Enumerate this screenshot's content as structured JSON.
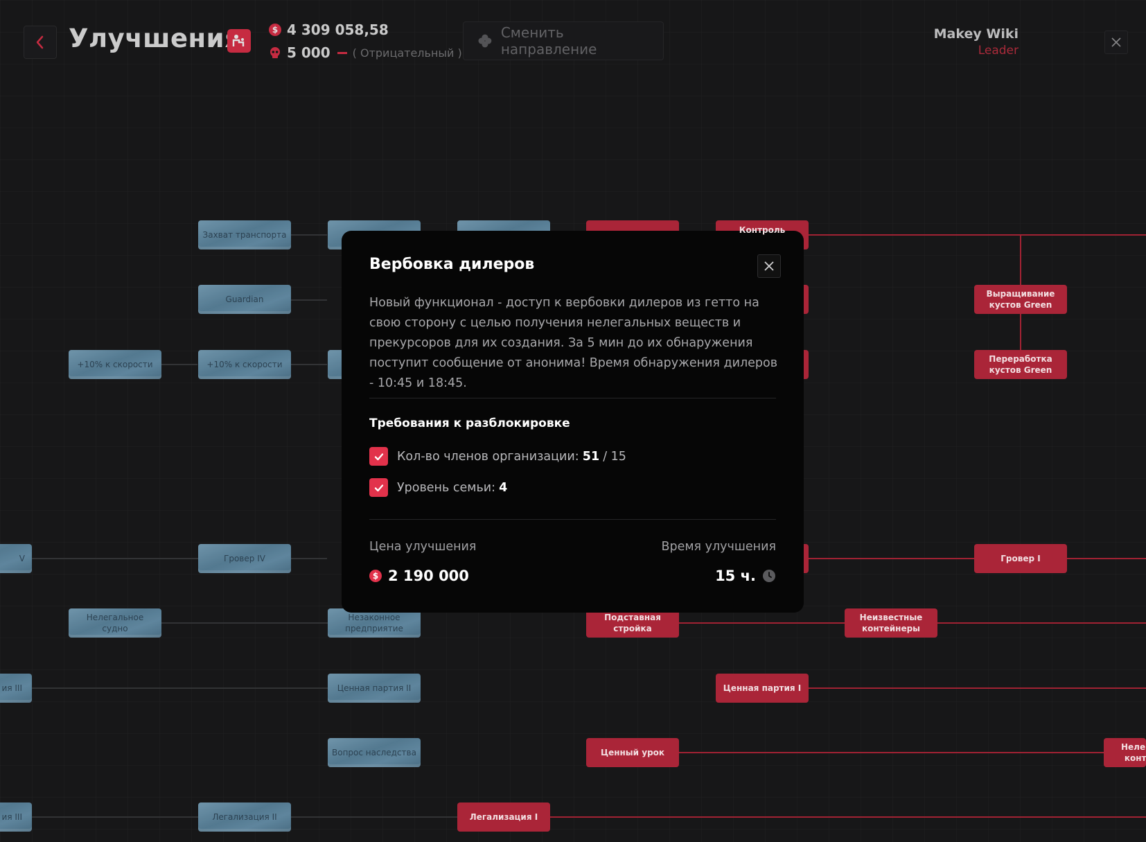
{
  "header": {
    "title": "Улучшения",
    "money": "4 309 058,58",
    "reputation_value": "5 000",
    "reputation_label": "( Отрицательный )",
    "change_direction_label": "Сменить направление",
    "user_name": "Makey Wiki",
    "user_role": "Leader"
  },
  "colors": {
    "accent": "#e2324b",
    "unlocked_node": "#c22b40",
    "locked_node": "#6f97b0",
    "background": "#1b1b1c"
  },
  "tree": {
    "nodes": [
      {
        "label": "Захват транспорта",
        "state": "locked"
      },
      {
        "label": "",
        "state": "locked"
      },
      {
        "label": "",
        "state": "locked"
      },
      {
        "label": "",
        "state": "unlocked"
      },
      {
        "label": "Контроль",
        "state": "unlocked"
      },
      {
        "label": "Guardian",
        "state": "locked"
      },
      {
        "label": "Выращивание кустов Green",
        "state": "unlocked"
      },
      {
        "label": "+10% к скорости",
        "state": "locked"
      },
      {
        "label": "+10% к скорости",
        "state": "locked"
      },
      {
        "label": "Переработка кустов Green",
        "state": "unlocked"
      },
      {
        "label": "V",
        "state": "locked"
      },
      {
        "label": "Гровер IV",
        "state": "locked"
      },
      {
        "label": "Гровер I",
        "state": "unlocked"
      },
      {
        "label": "Нелегальное судно",
        "state": "locked"
      },
      {
        "label": "Незаконное предприятие",
        "state": "locked"
      },
      {
        "label": "Подставная стройка",
        "state": "unlocked"
      },
      {
        "label": "Неизвестные контейнеры",
        "state": "unlocked"
      },
      {
        "label": "ия III",
        "state": "locked"
      },
      {
        "label": "Ценная партия II",
        "state": "locked"
      },
      {
        "label": "Ценная партия I",
        "state": "unlocked"
      },
      {
        "label": "Вопрос наследства",
        "state": "locked"
      },
      {
        "label": "Ценный урок",
        "state": "unlocked"
      },
      {
        "label": "Нелег конт",
        "state": "unlocked"
      },
      {
        "label": "ия III",
        "state": "locked"
      },
      {
        "label": "Легализация II",
        "state": "locked"
      },
      {
        "label": "Легализация I",
        "state": "unlocked"
      }
    ]
  },
  "modal": {
    "title": "Вербовка дилеров",
    "description": "Новый функционал - доступ к вербовки дилеров из гетто на свою сторону с целью получения нелегальных веществ и прекурсоров для их создания. За 5 мин до их обнаружения поступит сообщение от анонима! Время обнаружения дилеров - 10:45 и 18:45.",
    "requirements_title": "Требования к разблокировке",
    "requirements": [
      {
        "label": "Кол-во членов организации:",
        "value": "51",
        "max": "/ 15",
        "met": true
      },
      {
        "label": "Уровень семьи:",
        "value": "4",
        "max": "",
        "met": true
      }
    ],
    "price_label": "Цена улучшения",
    "price_value": "2 190 000",
    "time_label": "Время улучшения",
    "time_value": "15 ч."
  }
}
